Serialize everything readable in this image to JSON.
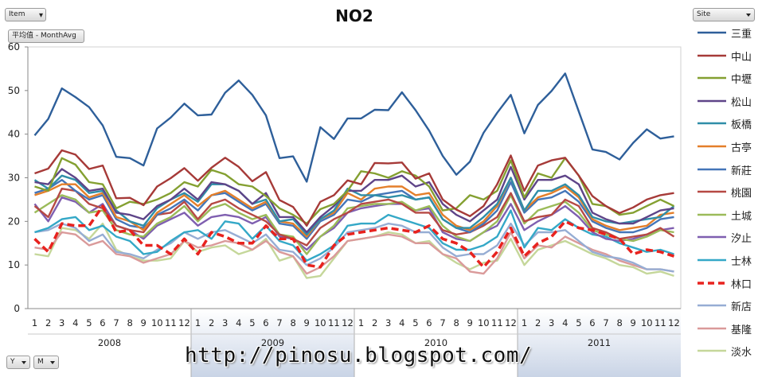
{
  "page": {
    "item_field": "Item",
    "value_field": "平均值 - MonthAvg",
    "site_field": "Site",
    "axis_fields": [
      "Y",
      "M"
    ],
    "watermark": "http://pinosu.blogspot.com/"
  },
  "chart_data": {
    "type": "line",
    "title": "NO2",
    "xlabel": "",
    "ylabel": "",
    "ylim": [
      0,
      60
    ],
    "yticks": [
      0,
      10,
      20,
      30,
      40,
      50,
      60
    ],
    "grid": false,
    "legend_position": "right",
    "years": [
      "2008",
      "2009",
      "2010",
      "2011"
    ],
    "months": [
      "1",
      "2",
      "3",
      "4",
      "5",
      "6",
      "7",
      "8",
      "9",
      "10",
      "11",
      "12"
    ],
    "series": [
      {
        "name": "三重",
        "color": "#2E5F9A",
        "dash": false,
        "values": [
          39.7,
          43.5,
          50.5,
          48.5,
          46.2,
          42.0,
          34.8,
          34.5,
          32.8,
          41.3,
          43.8,
          47.0,
          44.3,
          44.5,
          49.5,
          52.3,
          49.0,
          44.3,
          34.5,
          34.9,
          29.1,
          41.6,
          38.9,
          43.6,
          43.6,
          45.6,
          45.5,
          49.6,
          45.5,
          40.8,
          35.0,
          30.7,
          33.7,
          40.3,
          44.9,
          49.0,
          40.2,
          46.7,
          49.9,
          53.9,
          45.2,
          36.5,
          35.9,
          34.2,
          38.0,
          41.1,
          39.0,
          39.5
        ]
      },
      {
        "name": "中山",
        "color": "#A63A38",
        "dash": false,
        "values": [
          31.0,
          32.1,
          36.3,
          35.3,
          32.0,
          32.8,
          25.3,
          25.4,
          23.7,
          28.0,
          29.9,
          32.2,
          29.3,
          32.3,
          34.6,
          32.5,
          29.2,
          31.3,
          24.9,
          23.3,
          19.0,
          24.5,
          26.0,
          29.4,
          28.5,
          33.4,
          33.3,
          33.5,
          29.8,
          31.0,
          25.0,
          22.7,
          21.2,
          23.5,
          28.5,
          35.1,
          27.0,
          32.8,
          34.0,
          34.6,
          30.5,
          25.8,
          23.5,
          21.9,
          23.2,
          25.0,
          26.0,
          26.5
        ]
      },
      {
        "name": "中壢",
        "color": "#84A031",
        "dash": false,
        "values": [
          28.0,
          27.0,
          34.5,
          33.0,
          29.0,
          28.5,
          23.0,
          24.5,
          24.0,
          25.0,
          26.5,
          29.0,
          28.0,
          31.8,
          30.8,
          28.5,
          28.0,
          25.8,
          23.0,
          21.5,
          19.5,
          22.8,
          24.0,
          27.0,
          31.5,
          31.0,
          30.0,
          31.5,
          30.5,
          28.0,
          22.5,
          23.0,
          26.0,
          25.0,
          27.0,
          34.0,
          25.5,
          31.0,
          30.0,
          34.5,
          30.5,
          24.0,
          23.5,
          21.5,
          22.0,
          23.5,
          25.0,
          23.5
        ]
      },
      {
        "name": "松山",
        "color": "#5E4488",
        "dash": false,
        "values": [
          29.0,
          28.5,
          32.0,
          30.0,
          27.0,
          27.5,
          22.0,
          21.5,
          20.5,
          23.5,
          25.0,
          27.5,
          25.0,
          29.0,
          28.5,
          27.0,
          24.0,
          26.5,
          21.0,
          21.0,
          17.5,
          21.0,
          23.5,
          27.0,
          27.0,
          29.5,
          29.5,
          30.5,
          28.0,
          29.0,
          24.0,
          21.5,
          20.0,
          22.5,
          25.0,
          32.5,
          25.0,
          29.5,
          29.5,
          30.5,
          28.5,
          22.0,
          20.5,
          19.5,
          19.5,
          21.0,
          22.5,
          23.0
        ]
      },
      {
        "name": "板橋",
        "color": "#2F8EA8",
        "dash": false,
        "values": [
          29.5,
          27.5,
          30.5,
          29.5,
          26.5,
          27.0,
          22.5,
          20.0,
          19.0,
          23.0,
          25.0,
          26.5,
          24.5,
          28.5,
          28.5,
          27.0,
          24.0,
          25.0,
          20.0,
          20.5,
          17.0,
          20.5,
          22.5,
          27.5,
          26.0,
          26.0,
          25.5,
          26.0,
          25.0,
          25.5,
          20.5,
          18.5,
          18.5,
          21.0,
          24.0,
          30.0,
          22.5,
          27.0,
          27.0,
          28.5,
          26.0,
          21.0,
          20.0,
          19.5,
          20.0,
          20.5,
          21.0,
          23.5
        ]
      },
      {
        "name": "古亭",
        "color": "#E47F2A",
        "dash": false,
        "values": [
          26.0,
          27.0,
          28.5,
          28.5,
          25.5,
          26.5,
          21.0,
          20.0,
          18.0,
          22.0,
          24.0,
          26.0,
          23.5,
          26.0,
          27.0,
          25.0,
          23.0,
          24.5,
          20.0,
          19.5,
          16.5,
          20.5,
          22.0,
          26.5,
          25.0,
          27.5,
          28.0,
          28.0,
          26.0,
          26.5,
          21.5,
          19.0,
          18.0,
          20.0,
          23.5,
          30.0,
          22.5,
          25.5,
          26.5,
          28.0,
          25.5,
          20.5,
          19.0,
          18.0,
          18.5,
          19.0,
          21.5,
          22.0
        ]
      },
      {
        "name": "新莊",
        "color": "#4475B8",
        "dash": false,
        "values": [
          26.5,
          27.5,
          29.5,
          27.0,
          25.0,
          26.0,
          20.5,
          19.0,
          18.5,
          21.5,
          23.0,
          25.0,
          22.5,
          26.0,
          26.5,
          24.5,
          22.5,
          24.0,
          19.5,
          19.0,
          16.0,
          20.0,
          21.5,
          25.0,
          24.5,
          26.0,
          26.5,
          27.0,
          25.0,
          25.5,
          20.5,
          18.5,
          17.5,
          19.5,
          22.5,
          29.0,
          22.0,
          25.0,
          25.5,
          27.0,
          24.5,
          20.0,
          18.5,
          17.5,
          17.5,
          18.5,
          20.5,
          21.0
        ]
      },
      {
        "name": "桃園",
        "color": "#B64944",
        "dash": false,
        "values": [
          23.5,
          21.0,
          27.5,
          27.0,
          24.0,
          23.0,
          19.0,
          18.0,
          17.5,
          21.5,
          22.0,
          24.5,
          20.5,
          24.0,
          25.0,
          23.0,
          21.5,
          20.0,
          17.0,
          16.0,
          14.5,
          18.5,
          20.5,
          22.0,
          24.0,
          24.5,
          25.0,
          24.0,
          22.0,
          22.0,
          18.0,
          17.0,
          17.5,
          19.0,
          21.0,
          26.5,
          20.0,
          21.0,
          21.5,
          25.0,
          23.5,
          18.5,
          17.5,
          16.0,
          16.5,
          17.0,
          18.5,
          16.5
        ]
      },
      {
        "name": "土城",
        "color": "#9BBB59",
        "dash": false,
        "values": [
          22.0,
          24.0,
          26.0,
          25.0,
          22.0,
          22.5,
          18.0,
          17.0,
          16.5,
          19.5,
          21.0,
          23.5,
          20.0,
          23.0,
          24.0,
          22.0,
          20.5,
          21.5,
          17.0,
          16.5,
          12.5,
          16.5,
          19.0,
          23.0,
          23.5,
          24.0,
          24.0,
          24.5,
          22.5,
          23.5,
          19.0,
          16.5,
          15.5,
          17.5,
          20.0,
          26.0,
          19.5,
          22.5,
          23.5,
          24.5,
          22.0,
          18.0,
          17.0,
          16.0,
          15.5,
          16.5,
          18.0,
          17.5
        ]
      },
      {
        "name": "汐止",
        "color": "#7F5FB0",
        "dash": false,
        "values": [
          24.0,
          20.0,
          25.5,
          24.5,
          22.0,
          24.0,
          19.0,
          18.0,
          16.0,
          19.0,
          20.5,
          22.0,
          19.0,
          21.0,
          21.5,
          21.0,
          19.5,
          21.0,
          16.5,
          16.0,
          13.5,
          16.5,
          18.5,
          22.0,
          23.0,
          23.5,
          24.0,
          24.0,
          22.5,
          23.0,
          17.5,
          16.0,
          15.5,
          17.5,
          19.0,
          24.0,
          18.0,
          20.0,
          21.5,
          23.5,
          21.0,
          17.5,
          16.0,
          15.5,
          16.0,
          17.0,
          18.0,
          18.5
        ]
      },
      {
        "name": "士林",
        "color": "#34A8C7",
        "dash": false,
        "values": [
          17.5,
          18.5,
          20.5,
          21.0,
          18.0,
          19.0,
          16.5,
          15.5,
          12.5,
          13.0,
          15.5,
          17.5,
          18.0,
          16.0,
          20.0,
          19.5,
          16.0,
          19.0,
          15.5,
          14.5,
          11.0,
          12.5,
          14.5,
          19.0,
          19.5,
          19.5,
          21.5,
          20.5,
          19.5,
          18.5,
          15.0,
          13.5,
          13.5,
          14.5,
          16.5,
          22.5,
          14.0,
          18.5,
          18.0,
          20.5,
          18.5,
          17.0,
          16.5,
          15.0,
          14.0,
          13.0,
          13.5,
          12.5
        ]
      },
      {
        "name": "林口",
        "color": "#E8221E",
        "dash": true,
        "values": [
          16.0,
          13.0,
          19.5,
          19.0,
          19.0,
          23.5,
          17.5,
          18.0,
          14.5,
          14.5,
          12.5,
          16.0,
          12.5,
          17.5,
          16.5,
          15.0,
          15.0,
          19.0,
          16.0,
          16.0,
          10.0,
          9.5,
          14.5,
          17.0,
          17.5,
          18.0,
          18.5,
          18.0,
          17.5,
          19.0,
          16.0,
          15.0,
          13.0,
          9.5,
          13.0,
          18.5,
          12.0,
          15.0,
          16.5,
          20.0,
          18.5,
          18.0,
          17.0,
          16.0,
          12.5,
          13.5,
          13.0,
          12.0
        ]
      },
      {
        "name": "新店",
        "color": "#96ADD4",
        "dash": false,
        "values": [
          17.5,
          18.0,
          19.5,
          18.5,
          15.5,
          17.0,
          13.0,
          12.5,
          11.5,
          13.5,
          15.0,
          17.5,
          16.0,
          17.5,
          18.0,
          16.5,
          15.0,
          17.0,
          13.5,
          13.0,
          10.0,
          11.5,
          14.0,
          17.5,
          18.0,
          18.5,
          19.5,
          19.0,
          17.5,
          17.5,
          14.0,
          12.0,
          12.5,
          12.5,
          14.5,
          19.5,
          14.5,
          17.5,
          17.5,
          18.0,
          15.5,
          13.0,
          12.0,
          11.5,
          10.5,
          9.0,
          9.0,
          8.5
        ]
      },
      {
        "name": "基隆",
        "color": "#DA9A9A",
        "dash": false,
        "values": [
          14.0,
          13.5,
          17.5,
          17.0,
          14.5,
          15.5,
          12.5,
          12.0,
          10.5,
          11.5,
          12.5,
          15.5,
          14.0,
          14.5,
          15.5,
          15.0,
          13.5,
          15.5,
          13.0,
          12.0,
          8.0,
          9.5,
          12.0,
          15.5,
          16.0,
          16.5,
          17.0,
          16.5,
          15.0,
          15.0,
          12.5,
          11.5,
          8.5,
          8.0,
          11.5,
          17.5,
          11.5,
          14.5,
          14.0,
          16.5,
          15.0,
          13.5,
          12.5,
          11.0,
          10.0,
          9.0,
          9.0,
          8.5
        ]
      },
      {
        "name": "淡水",
        "color": "#C5D79A",
        "dash": false,
        "values": [
          12.5,
          12.0,
          18.5,
          18.0,
          16.0,
          19.5,
          13.5,
          12.0,
          11.0,
          11.0,
          11.5,
          15.5,
          13.0,
          14.0,
          14.5,
          12.5,
          13.5,
          16.0,
          11.0,
          12.0,
          7.0,
          7.5,
          11.5,
          15.5,
          16.0,
          16.5,
          17.5,
          17.0,
          15.0,
          15.5,
          12.5,
          10.5,
          9.0,
          10.5,
          11.0,
          16.0,
          10.0,
          13.5,
          14.5,
          15.5,
          14.0,
          12.5,
          11.5,
          10.0,
          9.5,
          8.0,
          8.5,
          7.5
        ]
      }
    ]
  }
}
